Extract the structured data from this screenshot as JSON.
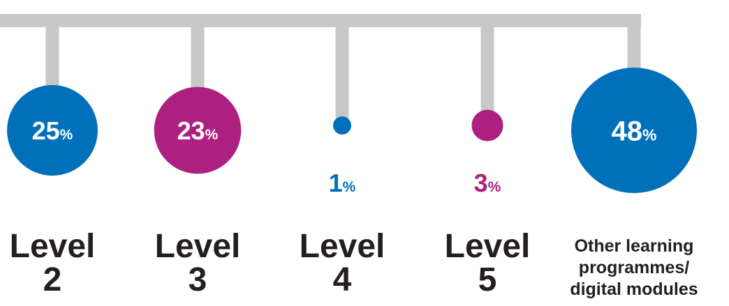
{
  "chart_data": {
    "type": "bubble",
    "title": "",
    "unit": "%",
    "categories": [
      "Level\n2",
      "Level\n3",
      "Level\n4",
      "Level\n5",
      "Other learning\nprogrammes/\ndigital modules"
    ],
    "values": [
      25,
      23,
      1,
      3,
      48
    ],
    "colors": [
      "#0070bb",
      "#ad1f80",
      "#0070bb",
      "#ad1f80",
      "#0070bb"
    ],
    "connector_color": "#c9c8c9",
    "legend": "none",
    "grid": false
  }
}
